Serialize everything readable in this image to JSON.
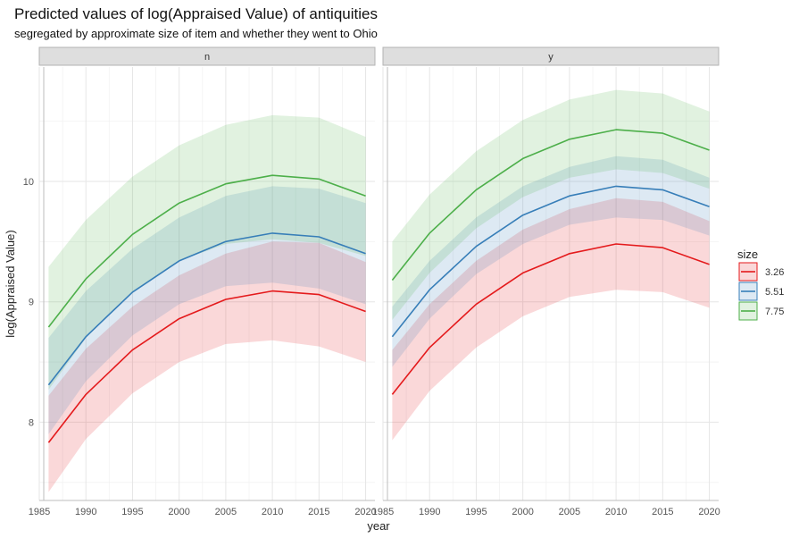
{
  "chart_data": {
    "type": "line",
    "title": "Predicted values of log(Appraised Value) of antiquities",
    "subtitle": "segregated by approximate size of item and whether they went to Ohio",
    "xlabel": "year",
    "ylabel": "log(Appraised Value)",
    "xlim": [
      1985,
      2021
    ],
    "ylim": [
      7.35,
      10.95
    ],
    "x_ticks": [
      1985,
      1990,
      1995,
      2000,
      2005,
      2010,
      2015,
      2020
    ],
    "y_ticks": [
      8,
      9,
      10
    ],
    "grid": true,
    "legend": {
      "title": "size",
      "position": "right",
      "entries": [
        "3.26",
        "5.51",
        "7.75"
      ]
    },
    "series_colors": {
      "3.26": "#e41a1c",
      "5.51": "#377eb8",
      "7.75": "#4daf4a"
    },
    "panels": [
      {
        "label": "n",
        "series": [
          {
            "name": "3.26",
            "x": [
              1986,
              1990,
              1995,
              2000,
              2005,
              2010,
              2015,
              2020
            ],
            "y": [
              7.83,
              8.23,
              8.6,
              8.86,
              9.02,
              9.09,
              9.06,
              8.92
            ],
            "lower": [
              7.42,
              7.86,
              8.24,
              8.5,
              8.65,
              8.68,
              8.63,
              8.5
            ],
            "upper": [
              8.22,
              8.61,
              8.96,
              9.22,
              9.4,
              9.5,
              9.49,
              9.33
            ]
          },
          {
            "name": "5.51",
            "x": [
              1986,
              1990,
              1995,
              2000,
              2005,
              2010,
              2015,
              2020
            ],
            "y": [
              8.31,
              8.71,
              9.08,
              9.34,
              9.5,
              9.57,
              9.54,
              9.4
            ],
            "lower": [
              7.9,
              8.34,
              8.72,
              8.98,
              9.13,
              9.16,
              9.11,
              8.98
            ],
            "upper": [
              8.7,
              9.09,
              9.44,
              9.7,
              9.88,
              9.96,
              9.94,
              9.82
            ]
          },
          {
            "name": "7.75",
            "x": [
              1986,
              1990,
              1995,
              2000,
              2005,
              2010,
              2015,
              2020
            ],
            "y": [
              8.79,
              9.19,
              9.56,
              9.82,
              9.98,
              10.05,
              10.02,
              9.88
            ],
            "lower": [
              8.27,
              8.7,
              9.08,
              9.34,
              9.48,
              9.52,
              9.49,
              9.38
            ],
            "upper": [
              9.29,
              9.68,
              10.04,
              10.3,
              10.47,
              10.55,
              10.53,
              10.37
            ]
          }
        ]
      },
      {
        "label": "y",
        "series": [
          {
            "name": "3.26",
            "x": [
              1986,
              1990,
              1995,
              2000,
              2005,
              2010,
              2015,
              2020
            ],
            "y": [
              8.23,
              8.62,
              8.98,
              9.24,
              9.4,
              9.48,
              9.45,
              9.31
            ],
            "lower": [
              7.85,
              8.26,
              8.62,
              8.88,
              9.04,
              9.1,
              9.08,
              8.95
            ],
            "upper": [
              8.6,
              8.98,
              9.34,
              9.6,
              9.77,
              9.86,
              9.83,
              9.67
            ]
          },
          {
            "name": "5.51",
            "x": [
              1986,
              1990,
              1995,
              2000,
              2005,
              2010,
              2015,
              2020
            ],
            "y": [
              8.71,
              9.1,
              9.46,
              9.72,
              9.88,
              9.96,
              9.93,
              9.79
            ],
            "lower": [
              8.46,
              8.86,
              9.23,
              9.48,
              9.64,
              9.7,
              9.68,
              9.55
            ],
            "upper": [
              8.96,
              9.34,
              9.7,
              9.96,
              10.12,
              10.21,
              10.18,
              10.03
            ]
          },
          {
            "name": "7.75",
            "x": [
              1986,
              1990,
              1995,
              2000,
              2005,
              2010,
              2015,
              2020
            ],
            "y": [
              9.18,
              9.57,
              9.93,
              10.19,
              10.35,
              10.43,
              10.4,
              10.26
            ],
            "lower": [
              8.85,
              9.24,
              9.61,
              9.87,
              10.03,
              10.1,
              10.07,
              9.94
            ],
            "upper": [
              9.5,
              9.89,
              10.25,
              10.51,
              10.68,
              10.76,
              10.73,
              10.58
            ]
          }
        ]
      }
    ]
  }
}
